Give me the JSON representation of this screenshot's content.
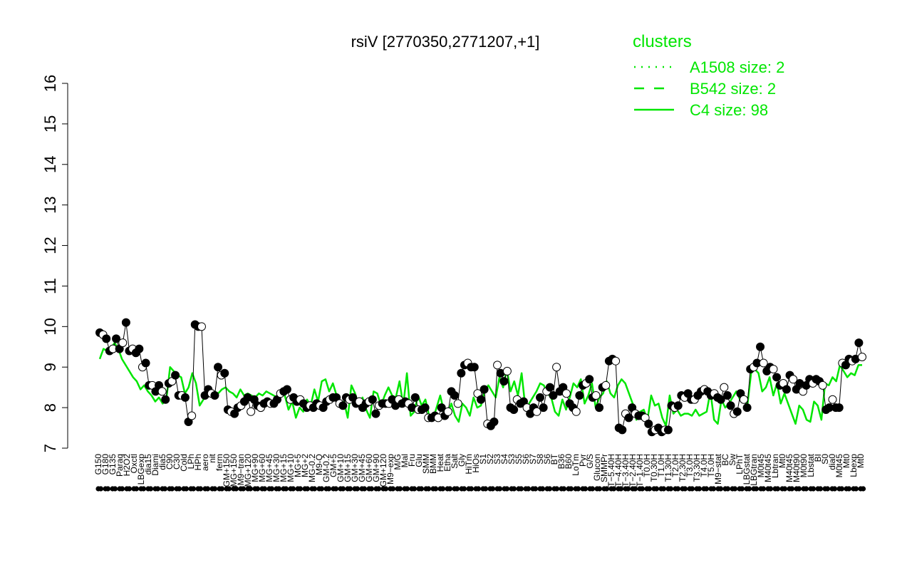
{
  "chart_data": {
    "type": "line",
    "title": "rsiV [2770350,2771207,+1]",
    "xlabel": "",
    "ylabel": "",
    "ylim": [
      7,
      16
    ],
    "yticks": [
      7,
      8,
      9,
      10,
      11,
      12,
      13,
      14,
      15,
      16
    ],
    "grid": false,
    "legend_position": "top-right",
    "legend": {
      "title": "clusters",
      "entries": [
        {
          "label": "A1508 size: 2",
          "style": "dotted"
        },
        {
          "label": "B542 size: 2",
          "style": "dashed"
        },
        {
          "label": "C4 size: 98",
          "style": "solid"
        }
      ]
    },
    "line_color": "#00e600",
    "xtick_labels": [
      "G150",
      "G180",
      "G135",
      "Paraq",
      "H2O2",
      "Oxctl",
      "LBGexp",
      "dia15",
      "Diami",
      "dia5",
      "C90",
      "C30",
      "Cold",
      "LPh",
      "HPh",
      "aero",
      "nit",
      "ferm",
      "GM+150",
      "MG+150",
      "M9−tran",
      "MG+120",
      "MG+90",
      "MG+60",
      "MG+45",
      "MG+30",
      "MG+15",
      "MG+10",
      "MG+5",
      "MG+2",
      "MG-0.2",
      "M9-Q",
      "GM-0.2",
      "GM+5",
      "GM+10",
      "GM+15",
      "GM+30",
      "GM+45",
      "GM+60",
      "GM+90",
      "GM+120",
      "M9−exp",
      "M/G",
      "Mal",
      "Fru",
      "Glu",
      "SMM",
      "BMM",
      "Heat",
      "Etha",
      "Salt",
      "Gly",
      "HiTm",
      "HiOs",
      "S1",
      "S2",
      "S3",
      "S4",
      "S3",
      "S5",
      "S6",
      "S7",
      "S8",
      "S6",
      "BT",
      "B36",
      "B60",
      "LoTm",
      "Pyr",
      "G/S",
      "Glucon",
      "SMMPr",
      "T−5.40H",
      "T−4.40H",
      "T−3.40H",
      "T−2.40H",
      "T−1.40H",
      "T0.0H",
      "T0.30H",
      "T1.0H",
      "T1.30H",
      "T2.0H",
      "T2.30H",
      "T3.0H",
      "T3.30H",
      "T4.0H",
      "T5.0H",
      "M9−stat",
      "BC",
      "Sw",
      "LPhT",
      "LBGstat",
      "LBGtran",
      "M0t45",
      "M40t45",
      "Lbtran",
      "Mt0",
      "M40t45",
      "M40t90",
      "M0t90",
      "Lbstat",
      "BI",
      "S0",
      "dia0",
      "M0t45",
      "Mt0",
      "Lbexp",
      "Mt0"
    ],
    "points": [
      9.85,
      9.8,
      9.7,
      9.4,
      9.45,
      9.7,
      9.45,
      9.6,
      10.1,
      9.4,
      9.45,
      9.35,
      9.45,
      9.0,
      9.1,
      8.55,
      8.55,
      8.4,
      8.55,
      8.4,
      8.2,
      8.6,
      8.65,
      8.8,
      8.3,
      8.3,
      8.25,
      7.65,
      7.8,
      10.05,
      10.0,
      10.0,
      8.3,
      8.45,
      8.35,
      8.3,
      9.0,
      8.8,
      8.85,
      7.95,
      7.9,
      7.85,
      8.0,
      8.05,
      8.15,
      8.25,
      7.9,
      8.2,
      8.05,
      8.0,
      8.1,
      8.15,
      8.1,
      8.1,
      8.2,
      8.35,
      8.4,
      8.45,
      8.2,
      8.25,
      8.15,
      8.2,
      8.1,
      8.0,
      8.05,
      8.0,
      8.1,
      8.05,
      8.0,
      8.15,
      8.2,
      8.25,
      8.25,
      8.1,
      8.05,
      8.25,
      8.2,
      8.25,
      8.1,
      8.15,
      8.0,
      8.1,
      8.15,
      8.2,
      7.85,
      8.05,
      8.1,
      8.1,
      8.1,
      8.2,
      8.05,
      8.2,
      8.1,
      8.15,
      8.1,
      8.0,
      8.25,
      7.95,
      7.95,
      8.0,
      7.75,
      7.75,
      7.8,
      7.75,
      8.0,
      7.8,
      7.9,
      8.4,
      8.3,
      8.1,
      8.85,
      9.05,
      9.1,
      9.0,
      9.0,
      8.35,
      8.2,
      8.45,
      7.6,
      7.55,
      7.65,
      9.05,
      8.85,
      8.65,
      8.9,
      8.0,
      7.95,
      8.2,
      8.1,
      8.15,
      8.0,
      7.85,
      8.0,
      7.9,
      8.25,
      8.0,
      8.4,
      8.5,
      8.3,
      9.0,
      8.4,
      8.5,
      8.35,
      8.1,
      8.0,
      7.9,
      8.3,
      8.55,
      8.6,
      8.7,
      8.25,
      8.3,
      8.0,
      8.5,
      8.55,
      9.15,
      9.2,
      9.15,
      7.5,
      7.45,
      7.85,
      7.75,
      8.0,
      7.85,
      7.8,
      7.8,
      7.75,
      7.6,
      7.4,
      7.45,
      7.5,
      7.4,
      7.45,
      7.45,
      8.05,
      8.0,
      8.05,
      8.3,
      8.25,
      8.35,
      8.2,
      8.2,
      8.3,
      8.4,
      8.45,
      8.4,
      8.3,
      8.35,
      8.25,
      8.2,
      8.5,
      8.3,
      8.05,
      7.85,
      7.9,
      8.35,
      8.2,
      8.0,
      8.95,
      9.0,
      9.1,
      9.5,
      9.1,
      8.9,
      9.0,
      8.95,
      8.75,
      8.55,
      8.6,
      8.45,
      8.8,
      8.7,
      8.45,
      8.6,
      8.4,
      8.55,
      8.7,
      8.6,
      8.7,
      8.65,
      8.55,
      7.95,
      8.0,
      8.2,
      8.0,
      8.0,
      9.1,
      9.05,
      9.2,
      9.15,
      9.2,
      9.6,
      9.25
    ],
    "trend": [
      9.2,
      9.45,
      9.4,
      9.45,
      9.6,
      9.45,
      9.2,
      9.05,
      8.9,
      8.75,
      8.65,
      8.45,
      8.55,
      8.4,
      8.3,
      8.15,
      8.25,
      8.1,
      8.2,
      9.0,
      8.9,
      8.8,
      8.75,
      8.35,
      8.5,
      8.85,
      8.6,
      8.05,
      8.2,
      8.4,
      8.3,
      8.4,
      8.35,
      8.45,
      8.5,
      8.4,
      8.35,
      8.25,
      8.45,
      8.3,
      8.35,
      8.3,
      8.25,
      8.35,
      8.3,
      8.4,
      8.35,
      8.3,
      8.25,
      8.4,
      8.3,
      7.95,
      8.15,
      7.75,
      8.0,
      7.9,
      8.2,
      8.05,
      8.45,
      8.15,
      8.65,
      8.7,
      8.4,
      8.6,
      8.3,
      8.05,
      8.15,
      7.75,
      8.55,
      8.35,
      8.05,
      8.25,
      7.95,
      7.75,
      8.4,
      8.35,
      8.05,
      8.3,
      8.5,
      8.3,
      8.25,
      8.65,
      8.05,
      8.85,
      7.8,
      7.9,
      8.3,
      8.05,
      8.2,
      7.8,
      7.7,
      8.0,
      8.3,
      7.9,
      7.85,
      8.1,
      7.8,
      7.65,
      8.1,
      8.0,
      7.8,
      8.25,
      8.0,
      8.05,
      8.4,
      8.55,
      8.4,
      8.25,
      8.75,
      8.5,
      8.95,
      8.4,
      8.65,
      8.3,
      8.85,
      8.0,
      8.1,
      8.25,
      8.4,
      8.6,
      8.55,
      8.35,
      8.25,
      7.9,
      7.8,
      8.2,
      7.95,
      8.25,
      8.6,
      8.5,
      8.7,
      8.1,
      8.3,
      8.6,
      8.0,
      8.25,
      8.35,
      8.65,
      8.35,
      8.25,
      8.55,
      8.7,
      8.6,
      8.35,
      8.1,
      7.7,
      7.9,
      7.95,
      7.7,
      8.3,
      8.05,
      8.1,
      7.75,
      7.55,
      8.3,
      7.85,
      7.95,
      7.8,
      7.85,
      7.85,
      7.8,
      7.95,
      7.8,
      7.85,
      7.9,
      8.4,
      7.7,
      7.6,
      8.2,
      8.0,
      8.1,
      8.25,
      8.4,
      8.2,
      8.2,
      8.05,
      8.85,
      8.95,
      8.85,
      8.4,
      8.5,
      8.75,
      8.3,
      8.6,
      8.1,
      8.35,
      8.1,
      7.85,
      7.6,
      8.05,
      7.95,
      7.7,
      7.65,
      8.15,
      8.05,
      7.7,
      8.6,
      8.55,
      8.75,
      8.65,
      9.05,
      8.9,
      8.75,
      8.85,
      8.8,
      9.05,
      9.05
    ]
  }
}
